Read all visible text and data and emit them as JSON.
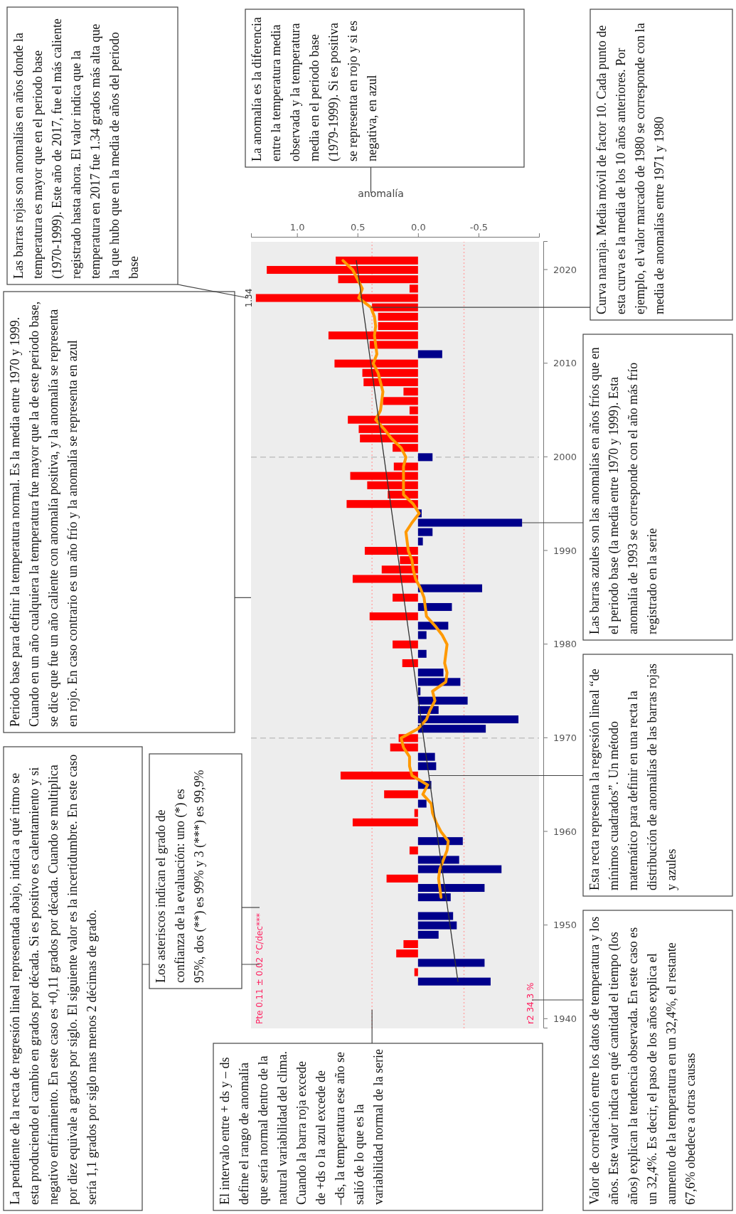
{
  "chart_data": {
    "type": "bar",
    "orientation": "horizontal",
    "xlabel": "anomalía",
    "x": [
      1944,
      1945,
      1946,
      1947,
      1948,
      1949,
      1950,
      1951,
      1953,
      1954,
      1955,
      1956,
      1957,
      1958,
      1959,
      1961,
      1962,
      1963,
      1964,
      1965,
      1966,
      1967,
      1968,
      1969,
      1970,
      1971,
      1972,
      1973,
      1974,
      1975,
      1976,
      1977,
      1978,
      1979,
      1980,
      1981,
      1982,
      1983,
      1984,
      1985,
      1986,
      1987,
      1988,
      1989,
      1990,
      1991,
      1992,
      1993,
      1994,
      1995,
      1996,
      1997,
      1998,
      1999,
      2000,
      2001,
      2002,
      2003,
      2004,
      2005,
      2006,
      2007,
      2008,
      2009,
      2010,
      2011,
      2012,
      2013,
      2014,
      2015,
      2016,
      2017,
      2018,
      2019,
      2020,
      2021
    ],
    "series": [
      {
        "values": [
          -0.6,
          0.03,
          -0.55,
          0.18,
          0.12,
          -0.17,
          -0.32,
          -0.29,
          -0.27,
          -0.55,
          0.26,
          -0.69,
          -0.34,
          0.07,
          -0.37,
          0.54,
          0.03,
          -0.07,
          0.28,
          -0.11,
          0.64,
          -0.15,
          -0.14,
          0.23,
          0.16,
          -0.56,
          -0.83,
          -0.17,
          -0.41,
          -0.02,
          -0.35,
          -0.21,
          0.13,
          -0.07,
          0.21,
          -0.07,
          -0.25,
          0.4,
          -0.28,
          0.21,
          -0.53,
          0.54,
          0.3,
          0.15,
          0.44,
          -0.04,
          -0.12,
          -0.86,
          -0.03,
          0.59,
          0.25,
          0.42,
          0.56,
          0.2,
          -0.12,
          0.21,
          0.48,
          0.49,
          0.58,
          0.07,
          0.29,
          0.12,
          0.45,
          0.46,
          0.69,
          -0.2,
          0.4,
          0.74,
          0.33,
          0.33,
          0.38,
          1.34,
          0.07,
          0.66,
          1.25,
          0.68
        ],
        "colors": [
          "#00008b",
          "#ff0000",
          "#00008b",
          "#ff0000",
          "#ff0000",
          "#00008b",
          "#00008b",
          "#00008b",
          "#00008b",
          "#00008b",
          "#ff0000",
          "#00008b",
          "#00008b",
          "#ff0000",
          "#00008b",
          "#ff0000",
          "#ff0000",
          "#00008b",
          "#ff0000",
          "#00008b",
          "#ff0000",
          "#00008b",
          "#00008b",
          "#ff0000",
          "#ff0000",
          "#00008b",
          "#00008b",
          "#00008b",
          "#00008b",
          "#00008b",
          "#00008b",
          "#00008b",
          "#ff0000",
          "#00008b",
          "#ff0000",
          "#00008b",
          "#00008b",
          "#ff0000",
          "#00008b",
          "#ff0000",
          "#00008b",
          "#ff0000",
          "#ff0000",
          "#ff0000",
          "#ff0000",
          "#00008b",
          "#00008b",
          "#00008b",
          "#00008b",
          "#ff0000",
          "#ff0000",
          "#ff0000",
          "#ff0000",
          "#ff0000",
          "#00008b",
          "#ff0000",
          "#ff0000",
          "#ff0000",
          "#ff0000",
          "#ff0000",
          "#ff0000",
          "#ff0000",
          "#ff0000",
          "#ff0000",
          "#ff0000",
          "#00008b",
          "#ff0000",
          "#ff0000",
          "#ff0000",
          "#ff0000",
          "#ff0000",
          "#ff0000",
          "#ff0000",
          "#ff0000",
          "#ff0000",
          "#ff0000"
        ]
      },
      {
        "type": "line",
        "color": "#ff9900",
        "x": [
          1953,
          1954,
          1955,
          1956,
          1957,
          1958,
          1959,
          1960,
          1961,
          1962,
          1963,
          1964,
          1965,
          1966,
          1967,
          1968,
          1969,
          1970,
          1971,
          1972,
          1973,
          1974,
          1975,
          1976,
          1977,
          1978,
          1979,
          1980,
          1981,
          1982,
          1983,
          1984,
          1985,
          1986,
          1987,
          1988,
          1989,
          1990,
          1991,
          1992,
          1993,
          1994,
          1995,
          1996,
          1997,
          1998,
          1999,
          2000,
          2001,
          2002,
          2003,
          2004,
          2005,
          2006,
          2007,
          2008,
          2009,
          2010,
          2011,
          2012,
          2013,
          2014,
          2015,
          2016,
          2017,
          2018,
          2019,
          2020,
          2021
        ],
        "values": [
          -0.19,
          -0.18,
          -0.17,
          -0.18,
          -0.21,
          -0.24,
          -0.25,
          -0.19,
          -0.15,
          -0.12,
          -0.11,
          -0.04,
          -0.08,
          0.05,
          0.07,
          0.07,
          0.12,
          0.14,
          0.0,
          -0.07,
          -0.1,
          -0.14,
          -0.12,
          -0.23,
          -0.24,
          -0.22,
          -0.23,
          -0.24,
          -0.2,
          -0.14,
          -0.07,
          -0.06,
          -0.05,
          -0.02,
          0.02,
          0.04,
          0.05,
          0.08,
          0.09,
          0.1,
          0.05,
          -0.01,
          0.04,
          0.12,
          0.12,
          0.12,
          0.12,
          0.1,
          0.14,
          0.22,
          0.28,
          0.35,
          0.31,
          0.3,
          0.29,
          0.31,
          0.33,
          0.37,
          0.34,
          0.35,
          0.36,
          0.35,
          0.36,
          0.39,
          0.49,
          0.46,
          0.5,
          0.54,
          0.62
        ]
      },
      {
        "type": "line",
        "color": "#333333",
        "x": [
          1944,
          2021
        ],
        "values": [
          -0.33,
          0.51
        ]
      }
    ],
    "ylim": [
      1939,
      2023
    ],
    "yticks": [
      1940,
      1950,
      1960,
      1970,
      1980,
      1990,
      2000,
      2010,
      2020
    ],
    "xlim": [
      1.38,
      -1.0
    ],
    "xticks": [
      {
        "value": 1,
        "label": "1.0"
      },
      {
        "value": 0.5,
        "label": "0.5"
      },
      {
        "value": 0,
        "label": "0.0"
      },
      {
        "value": -0.5,
        "label": "-0.5"
      }
    ],
    "ref_lines": [
      {
        "axis": "x",
        "value": 0.38,
        "color": "#ffaaaa",
        "line_style": "dotted"
      },
      {
        "axis": "x",
        "value": -0.38,
        "color": "#ffaaaa",
        "line_style": "dotted"
      },
      {
        "axis": "y",
        "value": 1970,
        "color": "#aaaaaa",
        "line_style": "dashed"
      },
      {
        "axis": "y",
        "value": 2000,
        "color": "#aaaaaa",
        "line_style": "dashed"
      }
    ],
    "annotations": [
      "Pte 0.11 ± 0.02 °C/dec***",
      "r2 34.3 %",
      {
        "text": "1.34",
        "x": 1.34,
        "y": 2017
      },
      "La pendiente de la recta de regresión lineal representada abajo, indica a qué ritmo se esta produciendo el cambio en grados por década. Si es positivo es calentamiento y si negativo enfriamiento. En este caso es +0,11 grados por década. Cuando se multiplica por diez equivale a grados por siglo. El siguiente valor es la incertidumbre. En este caso sería 1,1 grados por siglo mas menos 2 décimas de grado.",
      "Los asteriscos indican el grado de confianza de la evaluación: uno (*) es 95%, dos (**) es 99% y 3 (***) es 99,9%",
      "Periodo base para definir la temperatura normal. Es la media entre 1970 y 1999. Cuando en un año cualquiera la temperatura fue mayor que la de este periodo base, se dice que fue un año caliente con anomalía positiva, y la anomalía se representa en rojo. En caso contrario es un año frío y la anomalía se representa en azul",
      "Las barras rojas son anomalías en años donde la temperatura es mayor que en el periodo base (1970-1999). Este año de 2017, fue el más caliente registrado hasta ahora. El valor indica que la temperatura en 2017 fue 1.34 grados más alta que la que hubo que en la media de años del periodo base",
      "La anomalía es la diferencia entre la temperatura media observada y la temperatura media en el periodo base (1979-1999). Si es positiva se representa en rojo y si es negativa, en azul",
      {
        "text": "Curva naranja. Media móvil de factor 10. Cada punto de esta curva es la media de los 10 años anteriores. Por ejemplo, el valor marcado de 1980 se corresponde con la media de anomalías entre 1971 y 1980",
        "x": 0.39,
        "y": 2016
      },
      {
        "text": "Las barras azules son las anomalías en años fríos que en el periodo base (la media entre 1970 y 1999). Esta anomalía de 1993 se corresponde con el año más frío registrado en la serie",
        "x": -0.86,
        "y": 1993
      },
      {
        "text": "Esta recta representa la regresión lineal “de mínimos cuadrados”. Un método matemático para definir en una recta la distribución de anomalías de las barras rojas y azules",
        "x": -0.09,
        "y": 1966
      },
      "Valor de correlación entre los datos de temperatura y los años. Este valor indica en qué cantidad el tiempo (los años) explican la tendencia observada. En este caso es un 32,4%. Es decir, el paso de los años explica el aumento de la temperatura en un 32,4%, el restante 67,6% obedece a otras causas",
      "El intervalo entre + ds y – ds define el rango de anomalía que sería normal dentro de la natural variabilidad del clima. Cuando la barra roja excede de +ds o la azul excede de –ds, la temperatura ese año se salió de lo que es la variabilidad normal de la serie"
    ]
  }
}
